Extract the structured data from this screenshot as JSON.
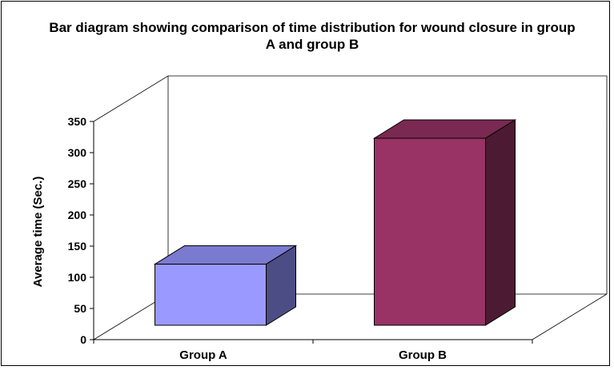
{
  "chart_data": {
    "type": "bar",
    "title": "Bar diagram showing comparison of time distribution for wound closure in group A and group B",
    "xlabel": "",
    "ylabel": "Average time (Sec.)",
    "categories": [
      "Group A",
      "Group B"
    ],
    "values": [
      98,
      300
    ],
    "ylim": [
      0,
      350
    ],
    "yticks": [
      "0",
      "50",
      "100",
      "150",
      "200",
      "250",
      "300",
      "350"
    ],
    "grid": false,
    "legend": "none",
    "bar_colors": {
      "Group A": {
        "front": "#9999ff",
        "top": "#7a7ad0",
        "side": "#4d4d85"
      },
      "Group B": {
        "front": "#993366",
        "top": "#7a2952",
        "side": "#4d1a33"
      }
    }
  }
}
